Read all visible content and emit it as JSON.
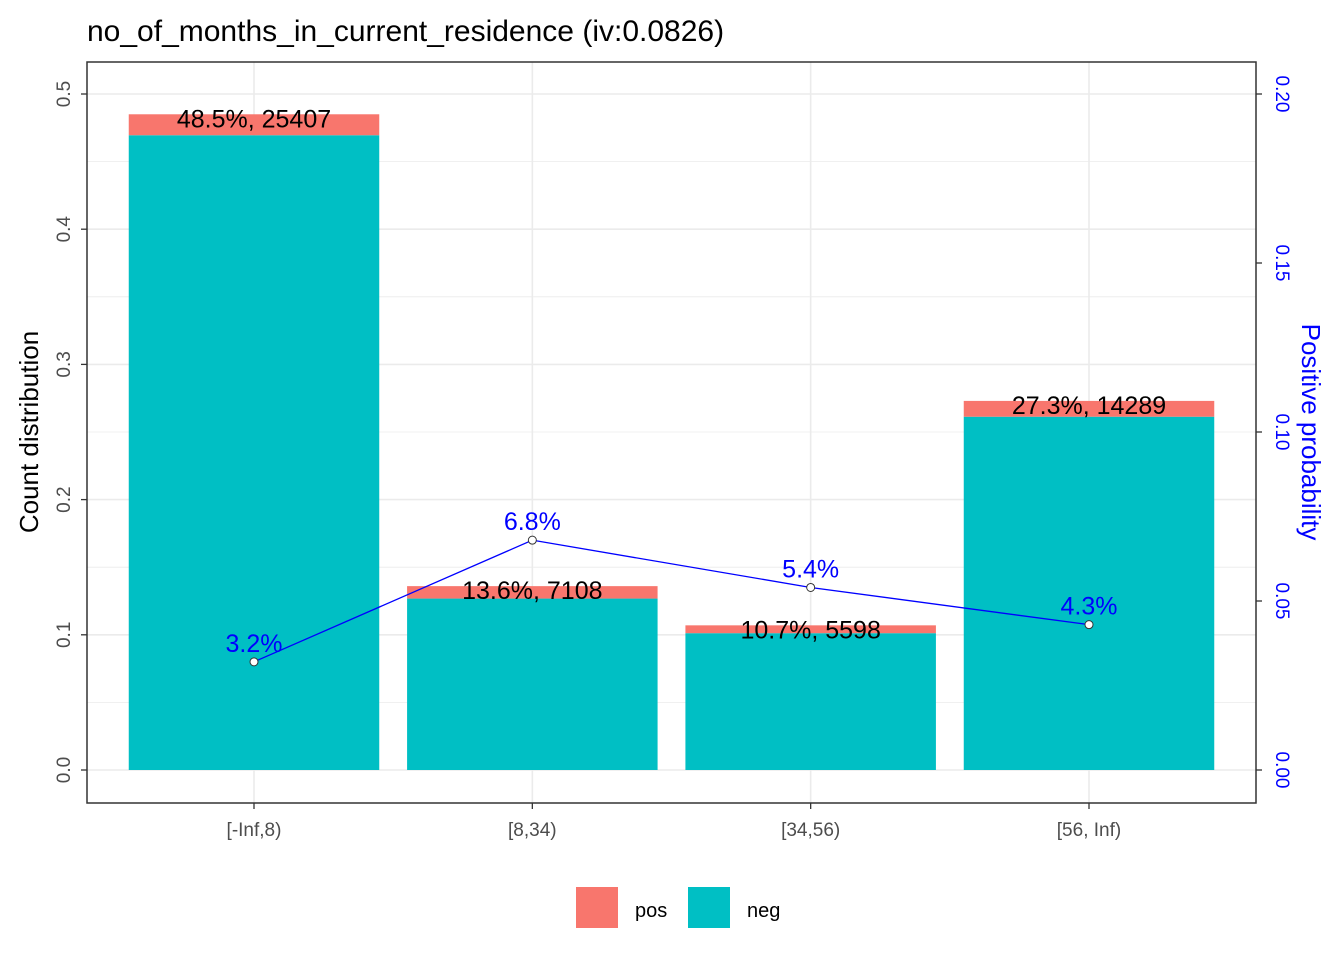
{
  "chart_data": {
    "type": "bar",
    "title": "no_of_months_in_current_residence  (iv:0.0826)",
    "ylabel": "Count distribution",
    "ylabel_right": "Positive probability",
    "xlabel": "",
    "ylim": [
      0,
      0.5
    ],
    "ylim_right": [
      0,
      0.2
    ],
    "yticks": [
      "0.0",
      "0.1",
      "0.2",
      "0.3",
      "0.4",
      "0.5"
    ],
    "yticks_right": [
      "0.00",
      "0.05",
      "0.10",
      "0.15",
      "0.20"
    ],
    "categories": [
      "[-Inf,8)",
      "[8,34)",
      "[34,56)",
      "[56, Inf)"
    ],
    "stacked": true,
    "series": [
      {
        "name": "pos",
        "values": [
          0.0155,
          0.0092,
          0.0058,
          0.0117
        ]
      },
      {
        "name": "neg",
        "values": [
          0.4695,
          0.1268,
          0.1012,
          0.2613
        ]
      }
    ],
    "bar_labels": [
      "48.5%, 25407",
      "13.6%, 7108",
      "10.7%, 5598",
      "27.3%, 14289"
    ],
    "positive_probability": {
      "values": [
        0.032,
        0.068,
        0.054,
        0.043
      ],
      "labels": [
        "3.2%",
        "6.8%",
        "5.4%",
        "4.3%"
      ]
    },
    "legend": {
      "position": "bottom",
      "items": [
        "pos",
        "neg"
      ]
    },
    "grid": true,
    "colors": {
      "pos": "#F8766D",
      "neg": "#00BFC4",
      "probability": "#0000FF",
      "grid": "#EBEBEB",
      "axis_text": "#4D4D4D"
    }
  }
}
